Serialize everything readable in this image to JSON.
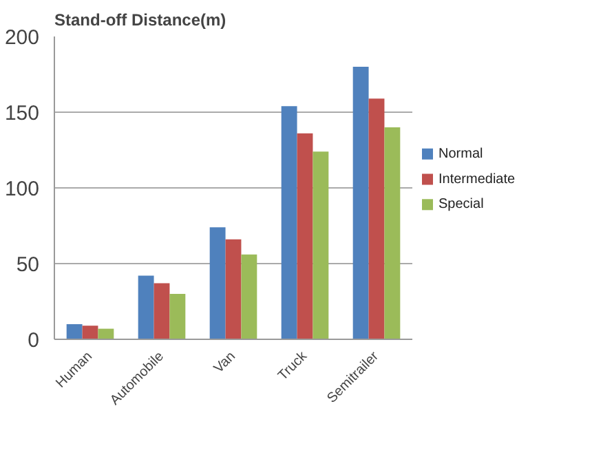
{
  "chart_data": {
    "type": "bar",
    "title": "Stand-off Distance(m)",
    "categories": [
      "Human",
      "Automobile",
      "Van",
      "Truck",
      "Semitrailer"
    ],
    "series": [
      {
        "name": "Normal",
        "color": "#4f81bd",
        "values": [
          10,
          42,
          74,
          154,
          180
        ]
      },
      {
        "name": "Intermediate",
        "color": "#c0504d",
        "values": [
          9,
          37,
          66,
          136,
          159
        ]
      },
      {
        "name": "Special",
        "color": "#9bbb59",
        "values": [
          7,
          30,
          56,
          124,
          140
        ]
      }
    ],
    "ylim": [
      0,
      200
    ],
    "yticks": [
      0,
      50,
      100,
      150,
      200
    ],
    "grid": "y",
    "legend": "right"
  }
}
